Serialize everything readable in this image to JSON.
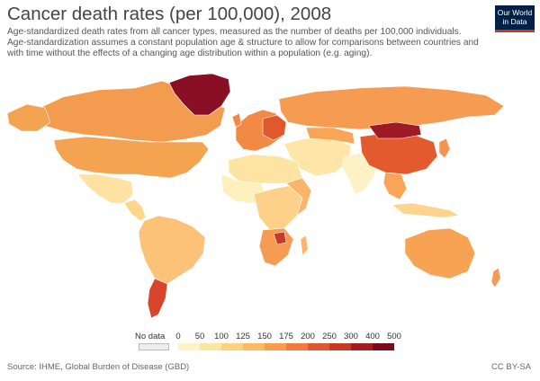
{
  "header": {
    "title": "Cancer death rates (per 100,000), 2008",
    "subtitle_line1": "Age-standardized death rates from all cancer types, measured as the number of deaths per 100,000 individuals.",
    "subtitle_line2": "Age-standardization assumes a constant population age & structure to allow for comparisons between countries and",
    "subtitle_line3": "with time without the effects of a changing age distribution within a population (e.g. aging).",
    "logo_line1": "Our World",
    "logo_line2": "in Data"
  },
  "legend": {
    "nodata_label": "No data",
    "nodata_color": "#eeeeee",
    "tick_labels": [
      "0",
      "50",
      "100",
      "125",
      "150",
      "175",
      "200",
      "250",
      "300",
      "400",
      "500"
    ],
    "bins": [
      {
        "from": 0,
        "to": 50,
        "color": "#fdf5c9"
      },
      {
        "from": 50,
        "to": 100,
        "color": "#fde6a0"
      },
      {
        "from": 100,
        "to": 125,
        "color": "#fdd27f"
      },
      {
        "from": 125,
        "to": 150,
        "color": "#fdb863"
      },
      {
        "from": 150,
        "to": 175,
        "color": "#f99c4e"
      },
      {
        "from": 175,
        "to": 200,
        "color": "#f07b3b"
      },
      {
        "from": 200,
        "to": 250,
        "color": "#e0592e"
      },
      {
        "from": 250,
        "to": 300,
        "color": "#c83a26"
      },
      {
        "from": 300,
        "to": 400,
        "color": "#a41d1f"
      },
      {
        "from": 400,
        "to": 500,
        "color": "#7a0a1c"
      }
    ]
  },
  "footer": {
    "source": "Source: IHME, Global Burden of Disease (GBD)",
    "license": "CC BY-SA"
  },
  "map_regions": {
    "greenland": "#8b0f24",
    "canada": "#f39b4e",
    "usa": "#f4a350",
    "mexico": "#fde2a2",
    "central_america": "#fdd68c",
    "south_america": "#fbc278",
    "uruguay_argentina": "#d8452c",
    "west_africa": "#fdf0bd",
    "north_africa": "#fde4a3",
    "central_africa": "#fdd18a",
    "east_africa": "#fbb46a",
    "southern_africa": "#f59b52",
    "zimbabwe": "#c83a26",
    "europe": "#f28a45",
    "eastern_europe": "#e0592e",
    "russia": "#f59b52",
    "middle_east": "#fde6a8",
    "india": "#fdf2c6",
    "china": "#e25a2e",
    "mongolia": "#9e1a24",
    "se_asia": "#f8a656",
    "japan_korea": "#f59450",
    "indonesia": "#fdd48e",
    "australia": "#f8a253",
    "new_zealand": "#f59a50"
  }
}
